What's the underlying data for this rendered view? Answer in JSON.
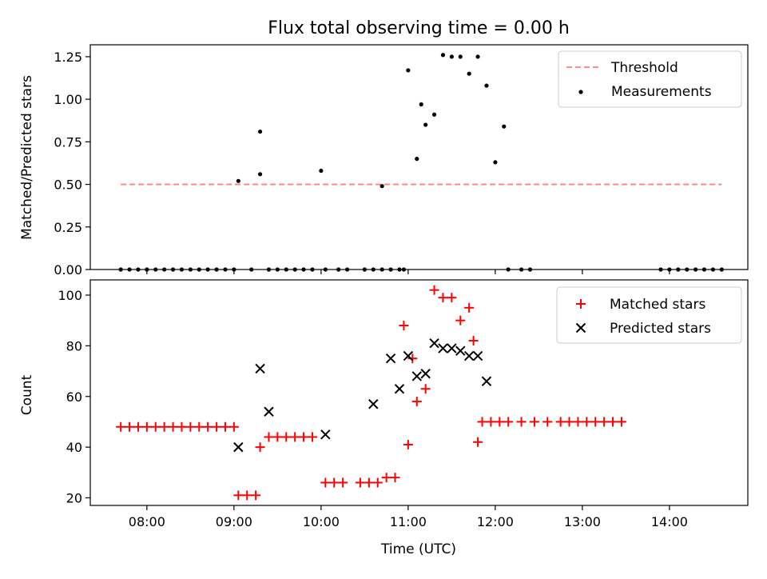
{
  "chart_data": [
    {
      "type": "scatter",
      "title": "Flux total observing time = 0.00 h",
      "xlabel": "",
      "ylabel": "Matched/Predicted stars",
      "xlim": [
        "07:21",
        "14:54"
      ],
      "ylim": [
        0,
        1.32
      ],
      "yticks": [
        0.0,
        0.25,
        0.5,
        0.75,
        1.0,
        1.25
      ],
      "ytick_labels": [
        "0.00",
        "0.25",
        "0.50",
        "0.75",
        "1.00",
        "1.25"
      ],
      "legend_position": "top-right",
      "threshold": {
        "name": "Threshold",
        "value": 0.5,
        "x_start": "07:42",
        "x_end": "14:36",
        "color": "#ff7f7f",
        "style": "dashed"
      },
      "series": [
        {
          "name": "Measurements",
          "color": "#000000",
          "marker": "dot",
          "x": [
            "07:42",
            "07:48",
            "07:54",
            "08:00",
            "08:06",
            "08:12",
            "08:18",
            "08:24",
            "08:30",
            "08:36",
            "08:42",
            "08:48",
            "08:54",
            "09:00",
            "09:03",
            "09:12",
            "09:18",
            "09:18",
            "09:24",
            "09:30",
            "09:36",
            "09:42",
            "09:48",
            "09:54",
            "10:00",
            "10:03",
            "10:12",
            "10:18",
            "10:30",
            "10:36",
            "10:42",
            "10:42",
            "10:48",
            "10:54",
            "10:57",
            "11:00",
            "11:06",
            "11:09",
            "11:12",
            "11:18",
            "11:24",
            "11:30",
            "11:36",
            "11:42",
            "11:48",
            "11:54",
            "12:00",
            "12:06",
            "12:09",
            "12:18",
            "12:24",
            "13:54",
            "14:00",
            "14:06",
            "14:12",
            "14:18",
            "14:24",
            "14:30",
            "14:36"
          ],
          "y": [
            0,
            0,
            0,
            0,
            0,
            0,
            0,
            0,
            0,
            0,
            0,
            0,
            0,
            0,
            0.52,
            0,
            0.56,
            0.81,
            0,
            0,
            0,
            0,
            0,
            0,
            0.58,
            0,
            0,
            0,
            0,
            0,
            0.49,
            0,
            0,
            0,
            0,
            1.17,
            0.65,
            0.97,
            0.85,
            0.91,
            1.26,
            1.25,
            1.25,
            1.15,
            1.25,
            1.08,
            0.63,
            0.84,
            0,
            0,
            0,
            0,
            0,
            0,
            0,
            0,
            0,
            0,
            0
          ]
        }
      ]
    },
    {
      "type": "scatter",
      "title": "",
      "xlabel": "Time (UTC)",
      "ylabel": "Count",
      "xlim": [
        "07:21",
        "14:54"
      ],
      "ylim": [
        17,
        106
      ],
      "yticks": [
        20,
        40,
        60,
        80,
        100
      ],
      "ytick_labels": [
        "20",
        "40",
        "60",
        "80",
        "100"
      ],
      "xticks": [
        "08:00",
        "09:00",
        "10:00",
        "11:00",
        "12:00",
        "13:00",
        "14:00"
      ],
      "xtick_labels": [
        "08:00",
        "09:00",
        "10:00",
        "11:00",
        "12:00",
        "13:00",
        "14:00"
      ],
      "legend_position": "top-right",
      "series": [
        {
          "name": "Matched stars",
          "color": "#ff0000",
          "marker": "plus",
          "x": [
            "07:42",
            "07:48",
            "07:54",
            "08:00",
            "08:06",
            "08:12",
            "08:18",
            "08:24",
            "08:30",
            "08:36",
            "08:42",
            "08:48",
            "08:54",
            "09:00",
            "09:03",
            "09:09",
            "09:15",
            "09:18",
            "09:24",
            "09:30",
            "09:36",
            "09:42",
            "09:48",
            "09:54",
            "10:03",
            "10:09",
            "10:15",
            "10:27",
            "10:33",
            "10:39",
            "10:45",
            "10:51",
            "10:57",
            "11:00",
            "11:03",
            "11:06",
            "11:12",
            "11:18",
            "11:24",
            "11:30",
            "11:36",
            "11:42",
            "11:45",
            "11:48",
            "11:51",
            "11:57",
            "12:03",
            "12:09",
            "12:18",
            "12:27",
            "12:36",
            "12:45",
            "12:51",
            "12:57",
            "13:03",
            "13:09",
            "13:15",
            "13:21",
            "13:27"
          ],
          "y": [
            48,
            48,
            48,
            48,
            48,
            48,
            48,
            48,
            48,
            48,
            48,
            48,
            48,
            48,
            21,
            21,
            21,
            40,
            44,
            44,
            44,
            44,
            44,
            44,
            26,
            26,
            26,
            26,
            26,
            26,
            28,
            28,
            88,
            41,
            75,
            58,
            63,
            102,
            99,
            99,
            90,
            95,
            82,
            42,
            50,
            50,
            50,
            50,
            50,
            50,
            50,
            50,
            50,
            50,
            50,
            50,
            50,
            50,
            50
          ]
        },
        {
          "name": "Predicted stars",
          "color": "#000000",
          "marker": "x",
          "x": [
            "09:03",
            "09:18",
            "09:24",
            "10:03",
            "10:36",
            "10:48",
            "10:54",
            "11:00",
            "11:06",
            "11:12",
            "11:18",
            "11:24",
            "11:30",
            "11:36",
            "11:42",
            "11:48",
            "11:54"
          ],
          "y": [
            40,
            71,
            54,
            45,
            57,
            75,
            63,
            76,
            68,
            69,
            81,
            79,
            79,
            78,
            76,
            76,
            66
          ]
        }
      ]
    }
  ]
}
